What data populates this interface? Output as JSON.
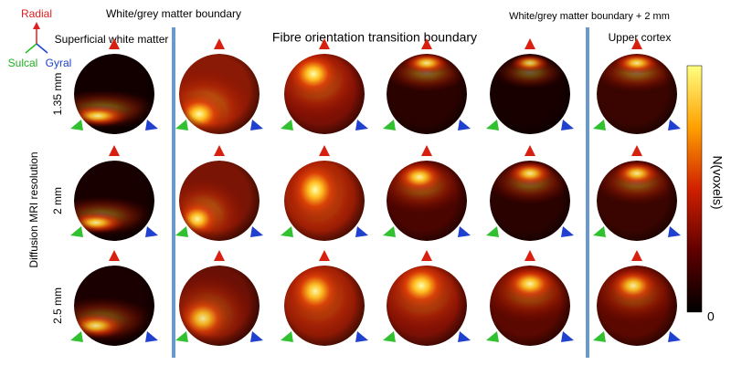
{
  "axes_key": {
    "up": "Radial",
    "left": "Sulcal",
    "right": "Gyral"
  },
  "column_headers": {
    "top_left": "White/grey matter boundary",
    "top_right": "White/grey matter boundary + 2 mm",
    "group_1": "Superficial white matter",
    "group_2": "Fibre orientation transition boundary",
    "group_3": "Upper cortex"
  },
  "row_axis_label": "Diffusion MRI resolution",
  "rows": [
    "1.35 mm",
    "2 mm",
    "2.5 mm"
  ],
  "colorbar": {
    "label": "N(voxels)",
    "min_label": "0"
  }
}
